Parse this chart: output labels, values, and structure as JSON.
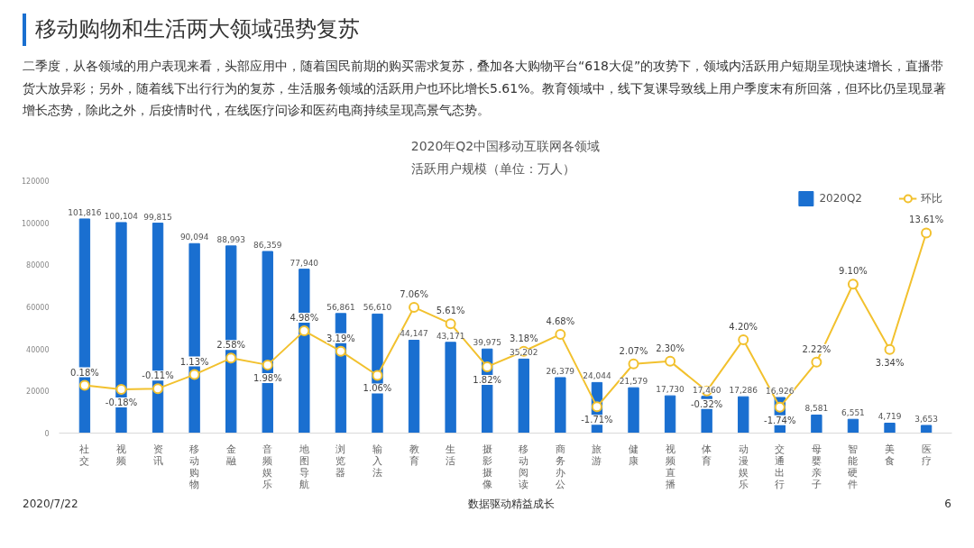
{
  "chart_data": {
    "type": "bar",
    "title": "2020年Q2中国移动互联网各领域",
    "subtitle": "活跃用户规模（单位：万人）",
    "annotations": [
      "移动购物和生活两大领域强势复苏",
      "二季度，从各领域的用户表现来看，头部应用中，随着国民前期的购买需求复苏，叠加各大购物平台“618大促”的攻势下，领域内活跃用户短期呈现快速增长，直播带货大放异彩；另外，随着线下出行行为的复苏，生活服务领域的活跃用户也环比增长5.61%。教育领域中，线下复课导致线上用户季度末有所回落，但环比仍呈现显著增长态势，除此之外，后疫情时代，在线医疗问诊和医药电商持续呈现高景气态势。",
      "2020/7/22",
      "数据驱动精益成长",
      "6"
    ],
    "categories": [
      "社交",
      "视频",
      "资讯",
      "移动购物",
      "金融",
      "音频娱乐",
      "地图导航",
      "浏览器",
      "输入法",
      "教育",
      "生活",
      "摄影摄像",
      "移动阅读",
      "商务办公",
      "旅游",
      "健康",
      "视频直播",
      "体育",
      "动漫娱乐",
      "交通出行",
      "母婴亲子",
      "智能硬件",
      "美食",
      "医疗"
    ],
    "series": [
      {
        "name": "2020Q2",
        "color": "#1a6fd0",
        "values": [
          101816,
          100104,
          99815,
          90094,
          88993,
          86359,
          77940,
          56861,
          56610,
          44147,
          43171,
          39975,
          35202,
          26379,
          24044,
          21579,
          17730,
          17460,
          17286,
          16926,
          8581,
          6551,
          4719,
          3653
        ],
        "value_labels": [
          "101,816",
          "100,104",
          "99,815",
          "90,094",
          "88,993",
          "86,359",
          "77,940",
          "56,861",
          "56,610",
          "44,147",
          "43,171",
          "39,975",
          "35,202",
          "26,379",
          "24,044",
          "21,579",
          "17,730",
          "17,460",
          "17,286",
          "16,926",
          "8,581",
          "6,551",
          "4,719",
          "3,653"
        ]
      },
      {
        "name": "环比",
        "type": "line",
        "axis": "y2",
        "color": "#f2c12e",
        "values": [
          0.18,
          -0.18,
          -0.11,
          1.13,
          2.58,
          1.98,
          4.98,
          3.19,
          1.06,
          7.06,
          5.61,
          1.82,
          3.18,
          4.68,
          -1.71,
          2.07,
          2.3,
          -0.32,
          4.2,
          -1.74,
          2.22,
          9.1,
          3.34,
          13.61
        ],
        "value_labels": [
          "0.18%",
          "-0.18%",
          "-0.11%",
          "1.13%",
          "2.58%",
          "1.98%",
          "4.98%",
          "3.19%",
          "1.06%",
          "7.06%",
          "5.61%",
          "1.82%",
          "3.18%",
          "4.68%",
          "-1.71%",
          "2.07%",
          "2.30%",
          "-0.32%",
          "4.20%",
          "-1.74%",
          "2.22%",
          "9.10%",
          "3.34%",
          "13.61%"
        ]
      }
    ],
    "ylim": [
      0,
      120000
    ],
    "yticks": [
      0,
      20000,
      40000,
      60000,
      80000,
      100000,
      120000
    ],
    "tick_labels": "x_y",
    "legend": "top right",
    "marker": "circle",
    "grid": false
  }
}
